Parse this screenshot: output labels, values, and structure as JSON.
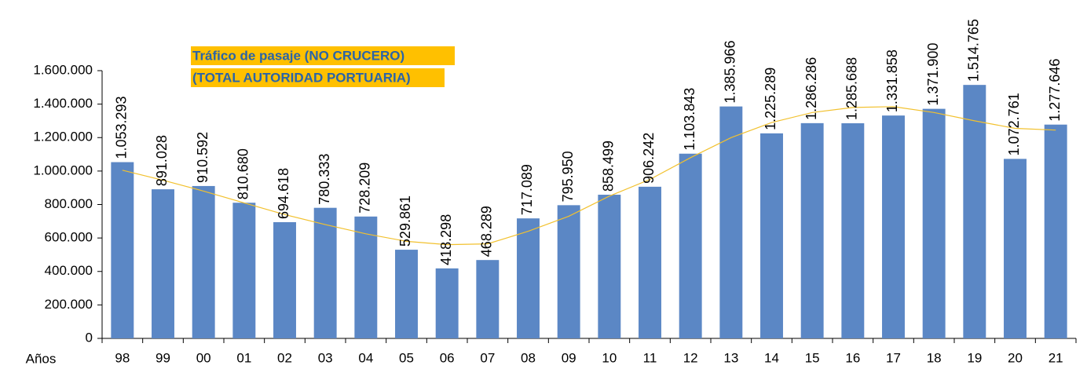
{
  "chart_data": {
    "type": "bar",
    "title": "Tráfico de pasaje  (NO CRUCERO)",
    "subtitle": "(TOTAL AUTORIDAD PORTUARIA)",
    "x_label": "Años",
    "categories": [
      "98",
      "99",
      "00",
      "01",
      "02",
      "03",
      "04",
      "05",
      "06",
      "07",
      "08",
      "09",
      "10",
      "11",
      "12",
      "13",
      "14",
      "15",
      "16",
      "17",
      "18",
      "19",
      "20",
      "21"
    ],
    "values": [
      1053293,
      891028,
      910592,
      810680,
      694618,
      780333,
      728209,
      529861,
      418298,
      468289,
      717089,
      795950,
      858499,
      906242,
      1103843,
      1385966,
      1225289,
      1286286,
      1285688,
      1331858,
      1371900,
      1514765,
      1072761,
      1277646
    ],
    "value_labels": [
      "1.053.293",
      "891.028",
      "910.592",
      "810.680",
      "694.618",
      "780.333",
      "728.209",
      "529.861",
      "418.298",
      "468.289",
      "717.089",
      "795.950",
      "858.499",
      "906.242",
      "1.103.843",
      "1.385.966",
      "1.225.289",
      "1.286.286",
      "1.285.688",
      "1.331.858",
      "1.371.900",
      "1.514.765",
      "1.072.761",
      "1.277.646"
    ],
    "color": "#5b87c5",
    "trend": {
      "color": "#f2c12e",
      "values": [
        1005000,
        945000,
        880000,
        810000,
        740000,
        680000,
        625000,
        580000,
        560000,
        565000,
        640000,
        730000,
        850000,
        950000,
        1080000,
        1200000,
        1290000,
        1350000,
        1380000,
        1385000,
        1350000,
        1300000,
        1255000,
        1245000
      ]
    },
    "ylim": [
      0,
      1600000
    ],
    "yticks": [
      0,
      {
        "value": 200000,
        "label": "200.000"
      },
      {
        "value": 400000,
        "label": "400.000"
      },
      {
        "value": 600000,
        "label": "600.000"
      },
      {
        "value": 800000,
        "label": "800.000"
      },
      {
        "value": 1000000,
        "label": "1.000.000"
      },
      {
        "value": 1200000,
        "label": "1.200.000"
      },
      {
        "value": 1400000,
        "label": "1.400.000"
      },
      {
        "value": 1600000,
        "label": "1.600.000"
      }
    ],
    "grid": false
  }
}
